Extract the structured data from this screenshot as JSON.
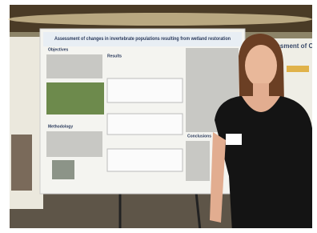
{
  "poster": {
    "title": "Assessment of changes in invertebrate populations resulting from wetland restoration",
    "sections": [
      "Objectives",
      "Results",
      "Methodology",
      "Conclusions"
    ]
  },
  "right_poster": {
    "title_fragment": "essment of C"
  }
}
